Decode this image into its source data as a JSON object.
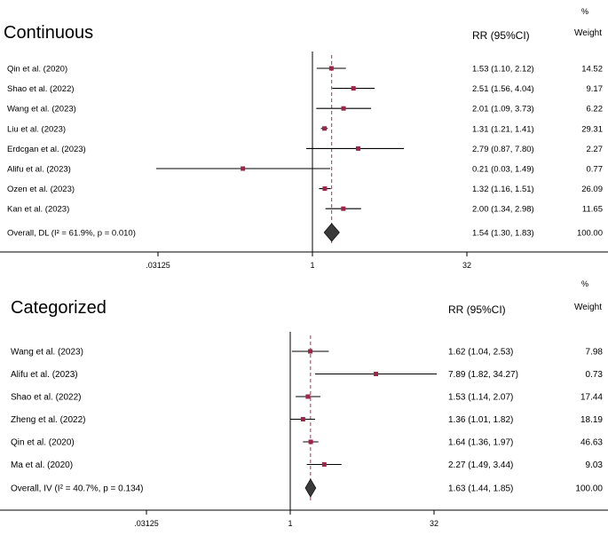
{
  "chart_data": [
    {
      "type": "forest",
      "title": "Continuous",
      "effect_header": "RR (95%CI)",
      "weight_header_top": "%",
      "weight_header": "Weight",
      "scale": "log2",
      "reference_value": 1,
      "xticks": [
        {
          "value": 0.03125,
          "label": ".03125"
        },
        {
          "value": 1,
          "label": "1"
        },
        {
          "value": 32,
          "label": "32"
        }
      ],
      "studies": [
        {
          "name": "Qin et al. (2020)",
          "rr": 1.53,
          "lo": 1.1,
          "hi": 2.12,
          "ci_text": "1.53 (1.10, 2.12)",
          "weight": "14.52"
        },
        {
          "name": "Shao et al. (2022)",
          "rr": 2.51,
          "lo": 1.56,
          "hi": 4.04,
          "ci_text": "2.51 (1.56, 4.04)",
          "weight": "9.17"
        },
        {
          "name": "Wang et al. (2023)",
          "rr": 2.01,
          "lo": 1.09,
          "hi": 3.73,
          "ci_text": "2.01 (1.09, 3.73)",
          "weight": "6.22"
        },
        {
          "name": "Liu et al. (2023)",
          "rr": 1.31,
          "lo": 1.21,
          "hi": 1.41,
          "ci_text": "1.31 (1.21, 1.41)",
          "weight": "29.31"
        },
        {
          "name": "Erdcgan et al. (2023)",
          "rr": 2.79,
          "lo": 0.87,
          "hi": 7.8,
          "ci_text": "2.79 (0.87, 7.80)",
          "weight": "2.27"
        },
        {
          "name": "Alifu et al. (2023)",
          "rr": 0.21,
          "lo": 0.03,
          "hi": 1.49,
          "ci_text": "0.21 (0.03, 1.49)",
          "weight": "0.77"
        },
        {
          "name": "Ozen et al. (2023)",
          "rr": 1.32,
          "lo": 1.16,
          "hi": 1.51,
          "ci_text": "1.32 (1.16, 1.51)",
          "weight": "26.09"
        },
        {
          "name": "Kan et al. (2023)",
          "rr": 2.0,
          "lo": 1.34,
          "hi": 2.98,
          "ci_text": "2.00 (1.34, 2.98)",
          "weight": "11.65"
        }
      ],
      "overall": {
        "name": "Overall, DL (I² = 61.9%, p = 0.010)",
        "rr": 1.54,
        "lo": 1.3,
        "hi": 1.83,
        "ci_text": "1.54 (1.30, 1.83)",
        "weight": "100.00"
      }
    },
    {
      "type": "forest",
      "title": "Categorized",
      "effect_header": "RR (95%CI)",
      "weight_header_top": "%",
      "weight_header": "Weight",
      "scale": "log2",
      "reference_value": 1,
      "xticks": [
        {
          "value": 0.03125,
          "label": ".03125"
        },
        {
          "value": 1,
          "label": "1"
        },
        {
          "value": 32,
          "label": "32"
        }
      ],
      "studies": [
        {
          "name": "Wang et al. (2023)",
          "rr": 1.62,
          "lo": 1.04,
          "hi": 2.53,
          "ci_text": "1.62 (1.04, 2.53)",
          "weight": "7.98"
        },
        {
          "name": "Alifu et al. (2023)",
          "rr": 7.89,
          "lo": 1.82,
          "hi": 34.27,
          "ci_text": "7.89 (1.82, 34.27)",
          "weight": "0.73"
        },
        {
          "name": "Shao et al. (2022)",
          "rr": 1.53,
          "lo": 1.14,
          "hi": 2.07,
          "ci_text": "1.53 (1.14, 2.07)",
          "weight": "17.44"
        },
        {
          "name": "Zheng et al. (2022)",
          "rr": 1.36,
          "lo": 1.01,
          "hi": 1.82,
          "ci_text": "1.36 (1.01, 1.82)",
          "weight": "18.19"
        },
        {
          "name": "Qin et al. (2020)",
          "rr": 1.64,
          "lo": 1.36,
          "hi": 1.97,
          "ci_text": "1.64 (1.36, 1.97)",
          "weight": "46.63"
        },
        {
          "name": "Ma et al. (2020)",
          "rr": 2.27,
          "lo": 1.49,
          "hi": 3.44,
          "ci_text": "2.27 (1.49, 3.44)",
          "weight": "9.03"
        }
      ],
      "overall": {
        "name": "Overall, IV (I² = 40.7%, p = 0.134)",
        "rr": 1.63,
        "lo": 1.44,
        "hi": 1.85,
        "ci_text": "1.63 (1.44, 1.85)",
        "weight": "100.00"
      }
    }
  ],
  "colors": {
    "marker": "#a0234a",
    "line": "#000000",
    "overall_line": "#b03050",
    "diamond": "#3a3a3a"
  }
}
